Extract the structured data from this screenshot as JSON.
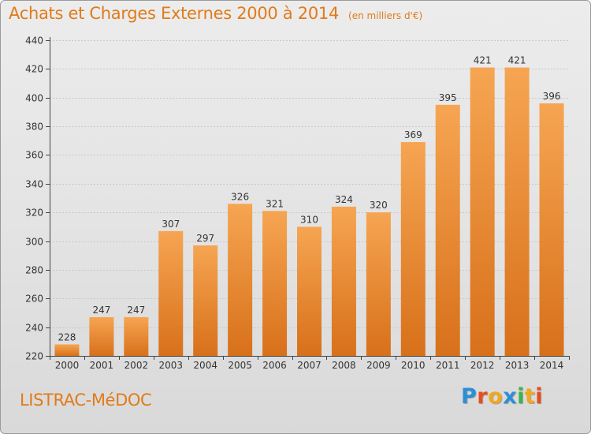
{
  "colors": {
    "accent": "#e07b1a",
    "bar_top": "#f6a552",
    "bar_bottom": "#d8701a",
    "grid": "#c8c8c8",
    "axis": "#444444",
    "logo": [
      "#2c8fd6",
      "#e84c1c",
      "#f2a81d",
      "#2c8fd6",
      "#3bb54a",
      "#f2a81d",
      "#e84c1c"
    ]
  },
  "header": {
    "title": "Achats et Charges Externes 2000 à 2014",
    "unit": "(en milliers d'€)"
  },
  "footer": {
    "commune": "LISTRAC-MéDOC",
    "logo_text": "Proxiti"
  },
  "chart_data": {
    "type": "bar",
    "title": "Achats et Charges Externes 2000 à 2014",
    "subtitle": "(en milliers d'€)",
    "xlabel": "",
    "ylabel": "",
    "categories": [
      "2000",
      "2001",
      "2002",
      "2003",
      "2004",
      "2005",
      "2006",
      "2007",
      "2008",
      "2009",
      "2010",
      "2011",
      "2012",
      "2013",
      "2014"
    ],
    "values": [
      228,
      247,
      247,
      307,
      297,
      326,
      321,
      310,
      324,
      320,
      369,
      395,
      421,
      421,
      396
    ],
    "ylim": [
      220,
      440
    ],
    "yticks": [
      220,
      240,
      260,
      280,
      300,
      320,
      340,
      360,
      380,
      400,
      420,
      440
    ],
    "grid": true,
    "legend": "none",
    "data_labels": true
  }
}
